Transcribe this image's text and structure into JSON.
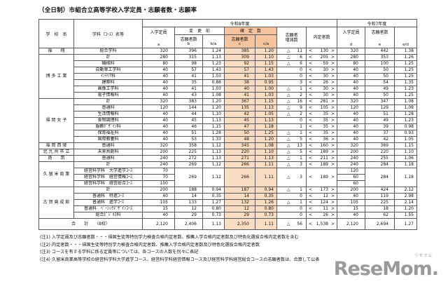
{
  "title": "（全日制）市組合立高等学校入学定員・志願者数・志願率",
  "table": {
    "era_current": "令和8年度",
    "era_previous": "令和7年度",
    "col_school": "学　校　名",
    "col_dept": "学科（ｺｰｽ）名等",
    "col_capacity": "入学定員",
    "col_before": "変　更　前",
    "col_fixed": "確　定　数",
    "col_applicants": "志願者数",
    "col_diff_line1": "志願者",
    "col_diff_line2": "増減数",
    "col_naitei": "内定者数",
    "letters": {
      "a": "a",
      "b": "b",
      "ba": "b/a",
      "c": "c",
      "ca": "c/a",
      "d": "d",
      "e": "e",
      "ed": "e/d"
    },
    "rows": [
      {
        "g": true,
        "s": "福　　翔",
        "ss": 1,
        "dept": "総合学科",
        "a": "320",
        "b": "396",
        "ba": "1.24",
        "c": "385",
        "ca": "1.20",
        "ds": "△",
        "dv": "11",
        "nt": "130",
        "d": "320",
        "e": "442",
        "ed": "1.38"
      },
      {
        "g": true,
        "s": "博 多 工 業",
        "ss": 7,
        "dept": "計",
        "a": "280",
        "b": "315",
        "ba": "1.13",
        "c": "309",
        "ca": "1.10",
        "ds": "△",
        "dv": "6",
        "nt": "205",
        "d": "280",
        "e": "353",
        "ed": "1.26"
      },
      {
        "dept": "機械科",
        "a": "80",
        "b": "98",
        "ba": "1.23",
        "c": "92",
        "ca": "1.15",
        "ds": "△",
        "dv": "6",
        "nt": "59",
        "d": "80",
        "e": "100",
        "ed": "1.25"
      },
      {
        "dept": "自動車工学科",
        "a": "40",
        "b": "57",
        "ba": "1.43",
        "c": "57",
        "ca": "1.43",
        "ds": "",
        "dv": "0",
        "nt": "30",
        "d": "40",
        "e": "50",
        "ed": "1.25"
      },
      {
        "dept": "ｲﾝﾃﾘｱ科",
        "a": "40",
        "b": "41",
        "ba": "1.03",
        "c": "41",
        "ca": "1.03",
        "ds": "",
        "dv": "0",
        "nt": "30",
        "d": "40",
        "e": "50",
        "ed": "1.25"
      },
      {
        "dept": "建築科",
        "a": "40",
        "b": "35",
        "ba": "0.88",
        "c": "38",
        "ca": "0.95",
        "ds": "",
        "dv": "3",
        "nt": "26",
        "d": "40",
        "e": "54",
        "ed": "1.35"
      },
      {
        "dept": "画像工学科",
        "a": "40",
        "b": "41",
        "ba": "1.03",
        "c": "40",
        "ca": "1.00",
        "ds": "△",
        "dv": "1",
        "nt": "30",
        "d": "40",
        "e": "49",
        "ed": "1.23"
      },
      {
        "dept": "電子情報科",
        "a": "40",
        "b": "43",
        "ba": "1.08",
        "c": "41",
        "ca": "1.03",
        "ds": "△",
        "dv": "2",
        "nt": "30",
        "d": "40",
        "e": "50",
        "ed": "1.25"
      },
      {
        "g": true,
        "s": "福 岡 女 子",
        "ss": 7,
        "dept": "計",
        "a": "320",
        "b": "383",
        "ba": "1.20",
        "c": "367",
        "ca": "1.15",
        "ds": "△",
        "dv": "16",
        "nt": "281",
        "d": "320",
        "e": "347",
        "ed": "1.08"
      },
      {
        "dept": "普通科",
        "a": "120",
        "b": "144",
        "ba": "1.20",
        "c": "135",
        "ca": "1.13",
        "ds": "△",
        "dv": "9",
        "nt": "105",
        "d": "120",
        "e": "129",
        "ed": "1.08"
      },
      {
        "dept": "生活情報科",
        "a": "40",
        "b": "44",
        "ba": "1.10",
        "c": "42",
        "ca": "1.05",
        "ds": "△",
        "dv": "2",
        "nt": "35",
        "d": "40",
        "e": "51",
        "ed": "1.28"
      },
      {
        "dept": "食物調理科",
        "a": "40",
        "b": "45",
        "ba": "1.13",
        "c": "45",
        "ca": "1.13",
        "ds": "",
        "dv": "0",
        "nt": "35",
        "d": "40",
        "e": "49",
        "ed": "1.23"
      },
      {
        "dept": "服飾ﾃﾞｻﾞｲﾝ科",
        "a": "40",
        "b": "46",
        "ba": "1.15",
        "c": "47",
        "ca": "1.18",
        "ds": "",
        "dv": "1",
        "nt": "35",
        "d": "40",
        "e": "39",
        "ed": "0.98"
      },
      {
        "dept": "保育福祉科",
        "a": "40",
        "b": "51",
        "ba": "1.28",
        "c": "50",
        "ca": "1.25",
        "ds": "△",
        "dv": "1",
        "nt": "35",
        "d": "40",
        "e": "37",
        "ed": "0.93"
      },
      {
        "dept": "国際教養科",
        "a": "40",
        "b": "53",
        "ba": "1.33",
        "c": "48",
        "ca": "1.20",
        "ds": "△",
        "dv": "5",
        "nt": "36",
        "d": "40",
        "e": "42",
        "ed": "1.05"
      },
      {
        "g": true,
        "s": "福 岡 西 陵",
        "ss": 1,
        "dept": "普通科",
        "a": "320",
        "b": "358",
        "ba": "1.12",
        "c": "345",
        "ca": "1.08",
        "ds": "△",
        "dv": "13",
        "nt": "160",
        "d": "320",
        "e": "369",
        "ed": "1.15"
      },
      {
        "g": true,
        "s": "北 九 州 市 立",
        "ss": 1,
        "dept": "未来共創科",
        "a": "200",
        "b": "225",
        "ba": "1.13",
        "c": "220",
        "ca": "1.10",
        "ds": "△",
        "dv": "5",
        "nt": "189",
        "d": "200",
        "e": "220",
        "ed": "1.10"
      },
      {
        "g": true,
        "s": "南　　筑",
        "ss": 1,
        "dept": "普通科",
        "a": "240",
        "b": "272",
        "ba": "1.13",
        "c": "271",
        "ca": "1.13",
        "ds": "△",
        "dv": "1",
        "nt": "211",
        "d": "240",
        "e": "255",
        "ed": "1.06"
      },
      {
        "g": true,
        "s": "久 留 米 商 業",
        "ss": 4,
        "dept": "計",
        "a": "240",
        "b": "269",
        "ba": "1.12",
        "c": "266",
        "ca": "1.11",
        "ds": "△",
        "dv": "3",
        "nt": "189",
        "d": "240",
        "e": "284",
        "ed": "1.18"
      },
      {
        "dept": "経営科学科　大学進学ｺｰｽ",
        "a": "70",
        "m": "start",
        "b": "269",
        "ba": "1.12",
        "c": "266",
        "ca": "1.11",
        "ds": "△",
        "dv": "3",
        "nt": "189",
        "d": "120",
        "e": "284",
        "ed": "1.18"
      },
      {
        "dept": "経営科学科　経営情報ｺｰｽ",
        "a": "70",
        "m": "mid",
        "d": "60"
      },
      {
        "dept": "経営科学科　経営総合ｺｰｽ",
        "a": "100",
        "m": "mid",
        "d": "60"
      },
      {
        "g": true,
        "s": "古 賀 竟 成 館",
        "ss": 5,
        "dept": "計",
        "a": "200",
        "b": "188",
        "ba": "0.94",
        "c": "187",
        "ca": "0.94",
        "ds": "△",
        "dv": "1",
        "nt": "173",
        "d": "200",
        "e": "424",
        "ed": "2.12"
      },
      {
        "dept": "普通科　特進ｺｰｽ",
        "a": "40",
        "b": "14",
        "ba": "0.35",
        "c": "14",
        "ca": "0.35",
        "ds": "",
        "dv": "0",
        "nt": "12",
        "d": "40",
        "e": "119",
        "ed": "2.98"
      },
      {
        "dept": "普通科　進学ｺｰｽ",
        "a": "105",
        "b": "133",
        "ba": "1.27",
        "c": "132",
        "ca": "1.26",
        "ds": "△",
        "dv": "1",
        "nt": "124",
        "d": "105",
        "e": "225",
        "ed": "2.14"
      },
      {
        "dept": "普通科　ﾍﾞｰｼｯｸﾃﾞｻﾞｲﾝｺｰｽ",
        "a": "15",
        "b": "12",
        "ba": "0.80",
        "c": "12",
        "ca": "0.80",
        "ds": "",
        "dv": "0",
        "nt": "11",
        "d": "15",
        "e": "18",
        "ed": "1.20"
      },
      {
        "dept": "総合ﾋﾞｼﾞﾈｽ科",
        "a": "40",
        "b": "29",
        "ba": "0.73",
        "c": "29",
        "ca": "0.73",
        "ds": "",
        "dv": "0",
        "nt": "26",
        "d": "40",
        "e": "62",
        "ed": "1.55"
      }
    ],
    "total": {
      "label": "合　　計　　（8校）",
      "a": "2,120",
      "b": "2,406",
      "ba": "1.13",
      "c": "2,350",
      "ca": "1.11",
      "ds": "△",
      "dv": "56",
      "nt": "1,538",
      "d": "2,120",
      "e": "2,694",
      "ed": "1.27"
    }
  },
  "notes": [
    "(注1) 入学定員及び志願者数・・・帰国生徒等特別学力検査合格内定者数、推薦入学合格内定者数及び特色化選抜合格内定者数を含む",
    "(注2) 内定者数・・・帰国生徒等特別学力検査合格内定者数、推薦入学合格内定者数及び特色化選抜合格内定者数",
    "(注3) コースを有する学科に係る定員等については、各コースの人数を別々に表記",
    "(注4) 久留米商業高等学校の経営科学科大学進学コース、経営科学科経営情報コース及び経営科学科経営総合コースの志願者数は、合算して公表"
  ],
  "logo": {
    "text": "ReseMom.",
    "kana": "リセマム"
  },
  "colors": {
    "highlight_body": "#FADCC3",
    "highlight_header": "#F5C49E",
    "border": "#000000"
  }
}
